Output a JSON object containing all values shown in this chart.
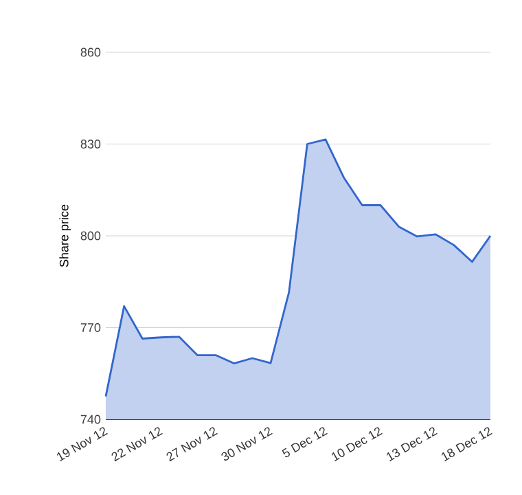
{
  "chart_data": {
    "type": "area",
    "ylabel": "Share price",
    "categories": [
      "19 Nov 12",
      null,
      null,
      "22 Nov 12",
      null,
      null,
      "27 Nov 12",
      null,
      null,
      "30 Nov 12",
      null,
      null,
      "5 Dec 12",
      null,
      null,
      "10 Dec 12",
      null,
      null,
      "13 Dec 12",
      null,
      null,
      "18 Dec 12"
    ],
    "series": [
      {
        "color": "#3366cc",
        "values": [
          747.5,
          777,
          766.4,
          766.8,
          767,
          761,
          761,
          758.3,
          760,
          758.4,
          781.5,
          830,
          831.5,
          819,
          810,
          810,
          803,
          799.8,
          800.5,
          797,
          791.5,
          800
        ]
      }
    ],
    "ylim": [
      740,
      860
    ],
    "yticks": [
      740,
      770,
      800,
      830,
      860
    ],
    "grid": "y"
  }
}
